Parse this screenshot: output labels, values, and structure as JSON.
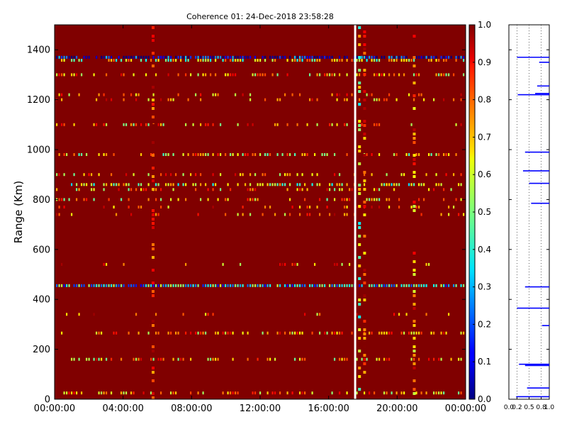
{
  "chart_data": [
    {
      "type": "heatmap",
      "title": "Coherence 01: 24-Dec-2018 23:58:28",
      "ylabel": "Range (Km)",
      "xlabel": "",
      "x_tick_labels": [
        "00:00:00",
        "04:00:00",
        "08:00:00",
        "12:00:00",
        "16:00:00",
        "20:00:00",
        "00:00:00"
      ],
      "x_tick_hours": [
        0,
        4,
        8,
        12,
        16,
        20,
        24
      ],
      "xlim_hours": [
        0,
        24
      ],
      "y_ticks": [
        0,
        200,
        400,
        600,
        800,
        1000,
        1200,
        1400
      ],
      "ylim": [
        0,
        1500
      ],
      "background_value": 1.0,
      "colormap": "jet",
      "colorbar": {
        "range": [
          0.0,
          1.0
        ],
        "ticks": [
          "0.0",
          "0.1",
          "0.2",
          "0.3",
          "0.4",
          "0.5",
          "0.6",
          "0.7",
          "0.8",
          "0.9",
          "1.0"
        ]
      },
      "missing_data_column_hour": 17.55,
      "vertical_features": [
        {
          "hour": 5.75,
          "value": 0.87
        },
        {
          "hour": 17.8,
          "value": 0.55
        },
        {
          "hour": 18.1,
          "value": 0.85
        },
        {
          "hour": 21.0,
          "value": 0.75
        }
      ],
      "bands": [
        {
          "range_km": 1370,
          "value": 0.1,
          "density": 0.8
        },
        {
          "range_km": 1358,
          "value": 0.6,
          "density": 0.55
        },
        {
          "range_km": 1300,
          "value": 0.7,
          "density": 0.45
        },
        {
          "range_km": 1220,
          "value": 0.75,
          "density": 0.22
        },
        {
          "range_km": 1200,
          "value": 0.75,
          "density": 0.22
        },
        {
          "range_km": 1100,
          "value": 0.7,
          "density": 0.28
        },
        {
          "range_km": 980,
          "value": 0.65,
          "density": 0.4
        },
        {
          "range_km": 900,
          "value": 0.7,
          "density": 0.3
        },
        {
          "range_km": 860,
          "value": 0.55,
          "density": 0.45
        },
        {
          "range_km": 840,
          "value": 0.7,
          "density": 0.28
        },
        {
          "range_km": 800,
          "value": 0.65,
          "density": 0.32
        },
        {
          "range_km": 770,
          "value": 0.75,
          "density": 0.2
        },
        {
          "range_km": 740,
          "value": 0.75,
          "density": 0.18
        },
        {
          "range_km": 540,
          "value": 0.75,
          "density": 0.12
        },
        {
          "range_km": 455,
          "value": 0.35,
          "density": 0.9
        },
        {
          "range_km": 340,
          "value": 0.75,
          "density": 0.1
        },
        {
          "range_km": 265,
          "value": 0.7,
          "density": 0.4
        },
        {
          "range_km": 160,
          "value": 0.7,
          "density": 0.4
        },
        {
          "range_km": 25,
          "value": 0.7,
          "density": 0.35
        }
      ]
    },
    {
      "type": "line",
      "x_tick_labels": [
        "0.0",
        "0.2",
        "0.5",
        "0.8",
        "1.0"
      ],
      "x_ticks": [
        0.0,
        0.2,
        0.5,
        0.8,
        1.0
      ],
      "xlim": [
        0,
        1
      ],
      "ylim": [
        0,
        1500
      ],
      "color": "#0000ff",
      "segments": [
        {
          "range_km": 1370,
          "x_from": 0.2,
          "x_to": 1.0
        },
        {
          "range_km": 1350,
          "x_from": 0.75,
          "x_to": 1.0
        },
        {
          "range_km": 1255,
          "x_from": 0.7,
          "x_to": 1.0
        },
        {
          "range_km": 1225,
          "x_from": 0.65,
          "x_to": 1.0
        },
        {
          "range_km": 1220,
          "x_from": 0.22,
          "x_to": 1.0
        },
        {
          "range_km": 990,
          "x_from": 0.4,
          "x_to": 1.0
        },
        {
          "range_km": 915,
          "x_from": 0.35,
          "x_to": 1.0
        },
        {
          "range_km": 865,
          "x_from": 0.5,
          "x_to": 1.0
        },
        {
          "range_km": 785,
          "x_from": 0.55,
          "x_to": 1.0
        },
        {
          "range_km": 450,
          "x_from": 0.4,
          "x_to": 1.0
        },
        {
          "range_km": 365,
          "x_from": 0.2,
          "x_to": 1.0
        },
        {
          "range_km": 295,
          "x_from": 0.82,
          "x_to": 1.0
        },
        {
          "range_km": 140,
          "x_from": 0.25,
          "x_to": 1.0
        },
        {
          "range_km": 135,
          "x_from": 0.4,
          "x_to": 1.0
        },
        {
          "range_km": 45,
          "x_from": 0.45,
          "x_to": 1.0
        },
        {
          "range_km": 10,
          "x_from": 0.18,
          "x_to": 1.0
        }
      ]
    }
  ]
}
